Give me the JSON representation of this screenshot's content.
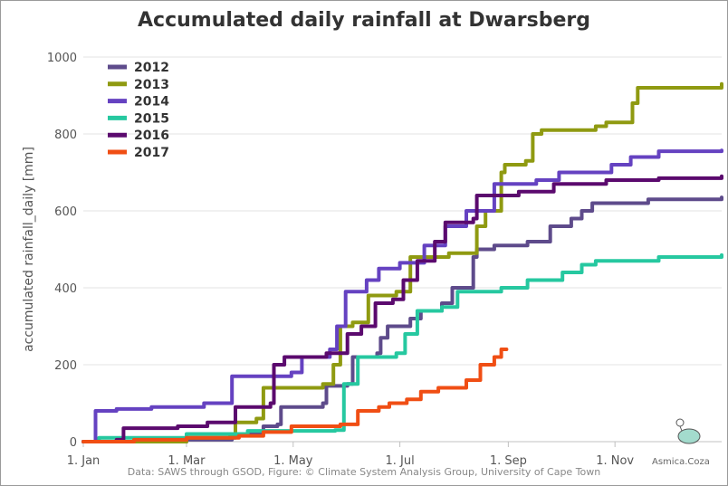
{
  "title": "Accumulated daily rainfall at Dwarsberg",
  "credit": "Data: SAWS through GSOD, Figure: © Climate System Analysis Group, University of Cape Town",
  "watermark": "Asmica.Coza",
  "chart_data": {
    "type": "line",
    "title": "Accumulated daily rainfall at Dwarsberg",
    "xlabel": "",
    "ylabel": "accumulated rainfall_daily [mm]",
    "x_unit": "day of year",
    "xlim": [
      1,
      366
    ],
    "ylim": [
      0,
      1000
    ],
    "x_ticks": [
      {
        "label": "1. Jan",
        "day": 1
      },
      {
        "label": "1. Mar",
        "day": 60
      },
      {
        "label": "1. May",
        "day": 121
      },
      {
        "label": "1. Jul",
        "day": 182
      },
      {
        "label": "1. Sep",
        "day": 244
      },
      {
        "label": "1. Nov",
        "day": 305
      }
    ],
    "y_ticks": [
      0,
      200,
      400,
      600,
      800,
      1000
    ],
    "grid": "horizontal",
    "legend_position": "top-left",
    "series": [
      {
        "name": "2012",
        "color": "#5e4b8b",
        "points": [
          [
            1,
            0
          ],
          [
            60,
            5
          ],
          [
            86,
            10
          ],
          [
            88,
            20
          ],
          [
            102,
            22
          ],
          [
            104,
            40
          ],
          [
            112,
            45
          ],
          [
            114,
            90
          ],
          [
            138,
            100
          ],
          [
            140,
            145
          ],
          [
            152,
            150
          ],
          [
            155,
            220
          ],
          [
            169,
            230
          ],
          [
            171,
            270
          ],
          [
            175,
            300
          ],
          [
            185,
            300
          ],
          [
            188,
            320
          ],
          [
            194,
            340
          ],
          [
            206,
            360
          ],
          [
            212,
            400
          ],
          [
            224,
            480
          ],
          [
            226,
            500
          ],
          [
            236,
            510
          ],
          [
            255,
            520
          ],
          [
            268,
            560
          ],
          [
            280,
            580
          ],
          [
            286,
            600
          ],
          [
            292,
            620
          ],
          [
            324,
            630
          ],
          [
            366,
            635
          ]
        ]
      },
      {
        "name": "2013",
        "color": "#8f9a11",
        "points": [
          [
            1,
            0
          ],
          [
            60,
            10
          ],
          [
            85,
            15
          ],
          [
            88,
            50
          ],
          [
            100,
            60
          ],
          [
            104,
            140
          ],
          [
            138,
            150
          ],
          [
            144,
            200
          ],
          [
            148,
            300
          ],
          [
            155,
            310
          ],
          [
            164,
            380
          ],
          [
            180,
            390
          ],
          [
            188,
            480
          ],
          [
            210,
            490
          ],
          [
            226,
            560
          ],
          [
            231,
            600
          ],
          [
            240,
            700
          ],
          [
            242,
            720
          ],
          [
            254,
            730
          ],
          [
            258,
            800
          ],
          [
            263,
            810
          ],
          [
            294,
            820
          ],
          [
            300,
            830
          ],
          [
            315,
            880
          ],
          [
            318,
            920
          ],
          [
            366,
            930
          ]
        ]
      },
      {
        "name": "2014",
        "color": "#6542c1",
        "points": [
          [
            1,
            0
          ],
          [
            8,
            80
          ],
          [
            20,
            85
          ],
          [
            40,
            90
          ],
          [
            70,
            100
          ],
          [
            86,
            170
          ],
          [
            120,
            180
          ],
          [
            126,
            220
          ],
          [
            142,
            240
          ],
          [
            146,
            300
          ],
          [
            151,
            390
          ],
          [
            163,
            420
          ],
          [
            170,
            450
          ],
          [
            182,
            465
          ],
          [
            196,
            510
          ],
          [
            208,
            560
          ],
          [
            220,
            600
          ],
          [
            236,
            670
          ],
          [
            260,
            680
          ],
          [
            273,
            700
          ],
          [
            303,
            720
          ],
          [
            314,
            740
          ],
          [
            330,
            755
          ],
          [
            366,
            757
          ]
        ]
      },
      {
        "name": "2015",
        "color": "#26c8a0",
        "points": [
          [
            1,
            0
          ],
          [
            10,
            10
          ],
          [
            60,
            20
          ],
          [
            95,
            28
          ],
          [
            145,
            30
          ],
          [
            150,
            150
          ],
          [
            158,
            220
          ],
          [
            180,
            230
          ],
          [
            185,
            280
          ],
          [
            192,
            340
          ],
          [
            206,
            350
          ],
          [
            215,
            390
          ],
          [
            240,
            400
          ],
          [
            255,
            420
          ],
          [
            275,
            440
          ],
          [
            286,
            460
          ],
          [
            294,
            470
          ],
          [
            330,
            480
          ],
          [
            366,
            485
          ]
        ]
      },
      {
        "name": "2016",
        "color": "#5b0a6e",
        "points": [
          [
            1,
            0
          ],
          [
            20,
            5
          ],
          [
            24,
            35
          ],
          [
            55,
            40
          ],
          [
            72,
            50
          ],
          [
            88,
            90
          ],
          [
            108,
            100
          ],
          [
            110,
            200
          ],
          [
            116,
            220
          ],
          [
            140,
            230
          ],
          [
            152,
            280
          ],
          [
            160,
            300
          ],
          [
            168,
            360
          ],
          [
            178,
            370
          ],
          [
            184,
            420
          ],
          [
            192,
            470
          ],
          [
            202,
            520
          ],
          [
            208,
            570
          ],
          [
            224,
            580
          ],
          [
            226,
            640
          ],
          [
            250,
            650
          ],
          [
            270,
            670
          ],
          [
            300,
            680
          ],
          [
            330,
            685
          ],
          [
            366,
            690
          ]
        ]
      },
      {
        "name": "2017",
        "color": "#f04e14",
        "points": [
          [
            1,
            0
          ],
          [
            30,
            5
          ],
          [
            60,
            10
          ],
          [
            90,
            15
          ],
          [
            104,
            25
          ],
          [
            120,
            40
          ],
          [
            148,
            45
          ],
          [
            158,
            80
          ],
          [
            170,
            90
          ],
          [
            176,
            100
          ],
          [
            186,
            110
          ],
          [
            194,
            130
          ],
          [
            204,
            140
          ],
          [
            220,
            160
          ],
          [
            228,
            200
          ],
          [
            236,
            220
          ],
          [
            240,
            240
          ],
          [
            243,
            240
          ]
        ]
      }
    ]
  }
}
